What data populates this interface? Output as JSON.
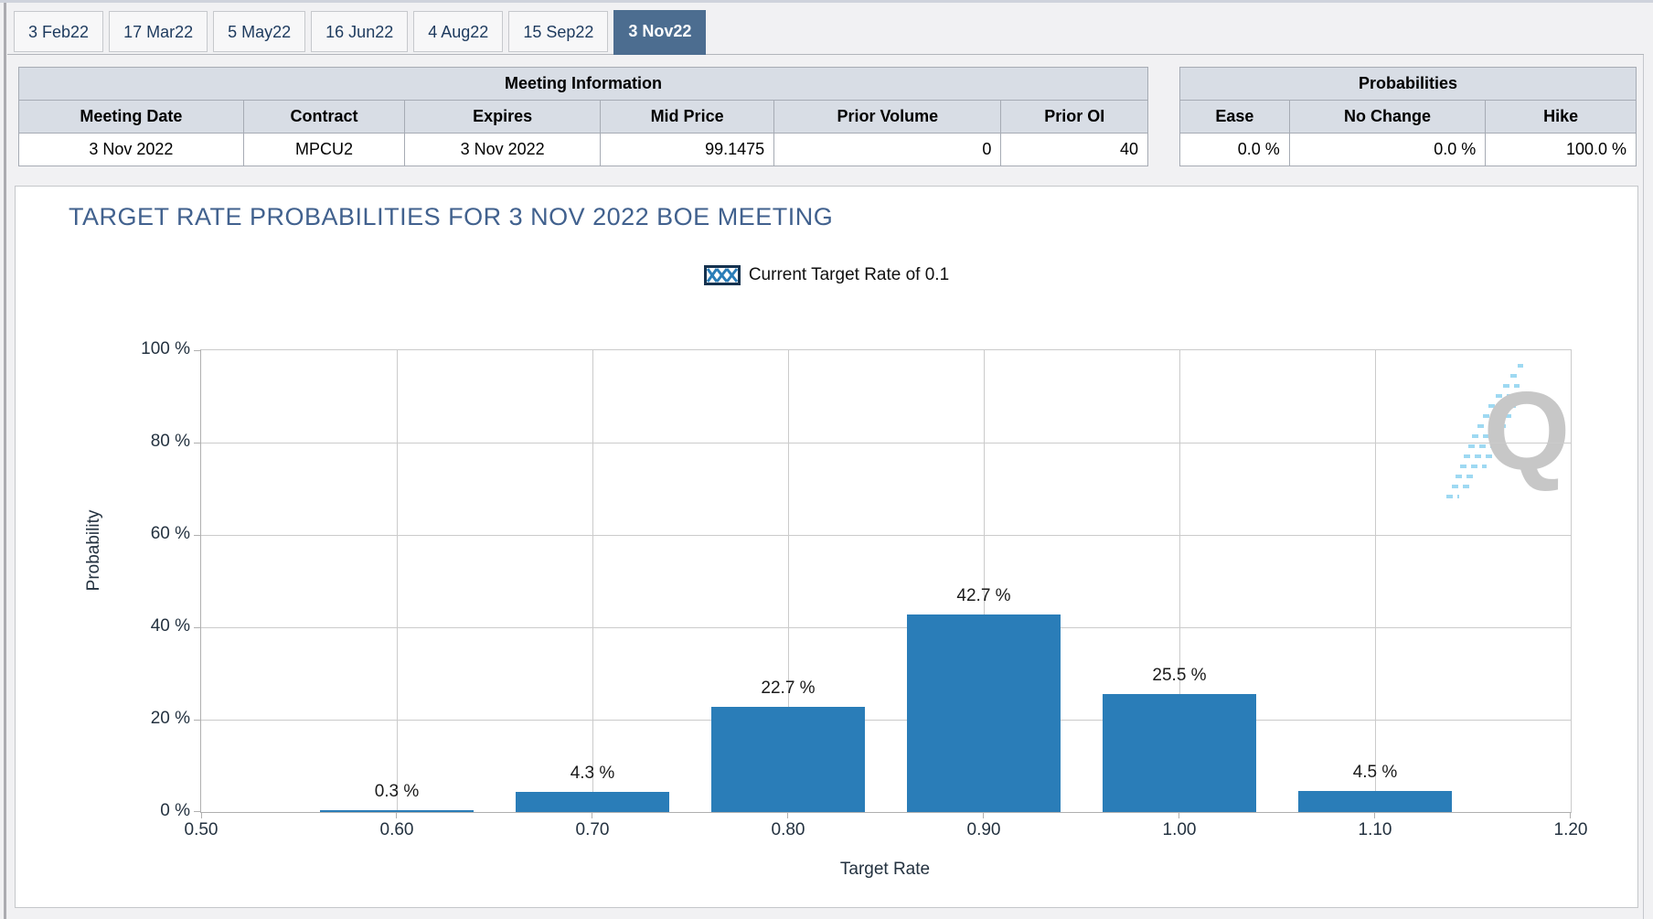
{
  "tabs": [
    {
      "label": "3 Feb22",
      "active": false
    },
    {
      "label": "17 Mar22",
      "active": false
    },
    {
      "label": "5 May22",
      "active": false
    },
    {
      "label": "16 Jun22",
      "active": false
    },
    {
      "label": "4 Aug22",
      "active": false
    },
    {
      "label": "15 Sep22",
      "active": false
    },
    {
      "label": "3 Nov22",
      "active": true
    }
  ],
  "meeting_info": {
    "title": "Meeting Information",
    "columns": [
      "Meeting Date",
      "Contract",
      "Expires",
      "Mid Price",
      "Prior Volume",
      "Prior OI"
    ],
    "row": [
      "3 Nov 2022",
      "MPCU2",
      "3 Nov 2022",
      "99.1475",
      "0",
      "40"
    ]
  },
  "probabilities": {
    "title": "Probabilities",
    "columns": [
      "Ease",
      "No Change",
      "Hike"
    ],
    "row": [
      "0.0 %",
      "0.0 %",
      "100.0 %"
    ]
  },
  "chart_data": {
    "type": "bar",
    "title": "TARGET RATE PROBABILITIES FOR 3 NOV 2022 BOE MEETING",
    "legend": "Current Target Rate of 0.1",
    "xlabel": "Target Rate",
    "ylabel": "Probability",
    "x": [
      0.6,
      0.7,
      0.8,
      0.9,
      1.0,
      1.1
    ],
    "values": [
      0.3,
      4.3,
      22.7,
      42.7,
      25.5,
      4.5
    ],
    "value_labels": [
      "0.3 %",
      "4.3 %",
      "22.7 %",
      "42.7 %",
      "25.5 %",
      "4.5 %"
    ],
    "x_ticks": [
      "0.50",
      "0.60",
      "0.70",
      "0.80",
      "0.90",
      "1.00",
      "1.10",
      "1.20"
    ],
    "xlim": [
      0.5,
      1.2
    ],
    "y_ticks": [
      "0 %",
      "20 %",
      "40 %",
      "60 %",
      "80 %",
      "100 %"
    ],
    "ylim": [
      0,
      100
    ],
    "grid": true,
    "legend_position": "top-center",
    "bar_color": "#2A7DB8",
    "watermark_letter": "Q"
  }
}
